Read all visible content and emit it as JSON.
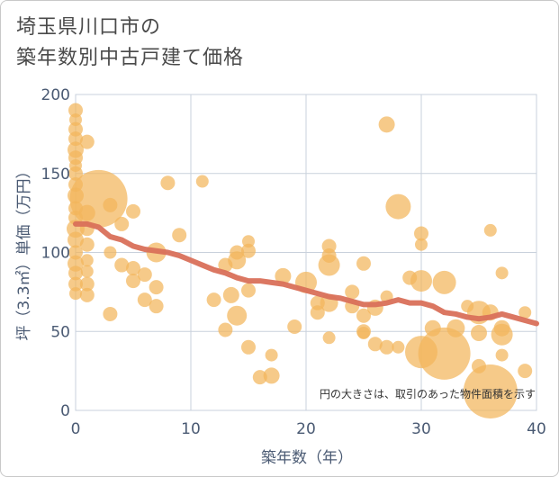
{
  "title": {
    "line1": "埼玉県川口市の",
    "line2": "築年数別中古戸建て価格"
  },
  "chart_data": {
    "type": "scatter",
    "title": "埼玉県川口市の築年数別中古戸建て価格",
    "xlabel": "築年数（年）",
    "ylabel": "坪（3.3㎡）単価（万円）",
    "xlim": [
      0,
      40
    ],
    "ylim": [
      0,
      200
    ],
    "x_ticks": [
      "0",
      "10",
      "20",
      "30",
      "40"
    ],
    "y_ticks": [
      "0",
      "50",
      "100",
      "150",
      "200"
    ],
    "grid": true,
    "note": "円の大きさは、取引のあった物件面積を示す",
    "colors": {
      "bubble": "#f2b55c",
      "trend": "#d9705a",
      "grid": "#c9d1dc"
    },
    "bubbles": [
      {
        "x": 0,
        "y": 190,
        "s": 8
      },
      {
        "x": 0,
        "y": 184,
        "s": 7
      },
      {
        "x": 0,
        "y": 178,
        "s": 8
      },
      {
        "x": 0,
        "y": 172,
        "s": 8
      },
      {
        "x": 0,
        "y": 165,
        "s": 9
      },
      {
        "x": 0,
        "y": 160,
        "s": 8
      },
      {
        "x": 0,
        "y": 155,
        "s": 7
      },
      {
        "x": 0,
        "y": 150,
        "s": 8
      },
      {
        "x": 0,
        "y": 143,
        "s": 8
      },
      {
        "x": 0,
        "y": 136,
        "s": 9
      },
      {
        "x": 0,
        "y": 128,
        "s": 8
      },
      {
        "x": 0,
        "y": 122,
        "s": 8
      },
      {
        "x": 0,
        "y": 115,
        "s": 10
      },
      {
        "x": 0,
        "y": 108,
        "s": 9
      },
      {
        "x": 0,
        "y": 100,
        "s": 8
      },
      {
        "x": 0,
        "y": 93,
        "s": 9
      },
      {
        "x": 0,
        "y": 87,
        "s": 8
      },
      {
        "x": 0,
        "y": 80,
        "s": 8
      },
      {
        "x": 0,
        "y": 74,
        "s": 7
      },
      {
        "x": 1,
        "y": 170,
        "s": 8
      },
      {
        "x": 1,
        "y": 125,
        "s": 9
      },
      {
        "x": 1,
        "y": 115,
        "s": 8
      },
      {
        "x": 1,
        "y": 105,
        "s": 8
      },
      {
        "x": 1,
        "y": 95,
        "s": 7
      },
      {
        "x": 1,
        "y": 88,
        "s": 7
      },
      {
        "x": 1,
        "y": 80,
        "s": 8
      },
      {
        "x": 1,
        "y": 73,
        "s": 8
      },
      {
        "x": 2,
        "y": 134,
        "s": 32
      },
      {
        "x": 3,
        "y": 130,
        "s": 8
      },
      {
        "x": 3,
        "y": 100,
        "s": 7
      },
      {
        "x": 3,
        "y": 61,
        "s": 8
      },
      {
        "x": 4,
        "y": 118,
        "s": 8
      },
      {
        "x": 4,
        "y": 92,
        "s": 8
      },
      {
        "x": 5,
        "y": 126,
        "s": 8
      },
      {
        "x": 5,
        "y": 90,
        "s": 8
      },
      {
        "x": 5,
        "y": 82,
        "s": 8
      },
      {
        "x": 6,
        "y": 86,
        "s": 8
      },
      {
        "x": 6,
        "y": 70,
        "s": 8
      },
      {
        "x": 7,
        "y": 100,
        "s": 11
      },
      {
        "x": 7,
        "y": 78,
        "s": 8
      },
      {
        "x": 7,
        "y": 66,
        "s": 8
      },
      {
        "x": 8,
        "y": 144,
        "s": 8
      },
      {
        "x": 9,
        "y": 111,
        "s": 8
      },
      {
        "x": 11,
        "y": 145,
        "s": 7
      },
      {
        "x": 12,
        "y": 70,
        "s": 8
      },
      {
        "x": 13,
        "y": 92,
        "s": 8
      },
      {
        "x": 13,
        "y": 51,
        "s": 8
      },
      {
        "x": 13.5,
        "y": 73,
        "s": 9
      },
      {
        "x": 14,
        "y": 100,
        "s": 8
      },
      {
        "x": 14,
        "y": 95,
        "s": 10
      },
      {
        "x": 14,
        "y": 60,
        "s": 11
      },
      {
        "x": 15,
        "y": 107,
        "s": 7
      },
      {
        "x": 15,
        "y": 101,
        "s": 8
      },
      {
        "x": 15,
        "y": 76,
        "s": 8
      },
      {
        "x": 15,
        "y": 40,
        "s": 8
      },
      {
        "x": 16,
        "y": 21,
        "s": 8
      },
      {
        "x": 17,
        "y": 35,
        "s": 7
      },
      {
        "x": 17,
        "y": 22,
        "s": 9
      },
      {
        "x": 18,
        "y": 85,
        "s": 9
      },
      {
        "x": 19,
        "y": 53,
        "s": 8
      },
      {
        "x": 20,
        "y": 81,
        "s": 12
      },
      {
        "x": 21,
        "y": 68,
        "s": 8
      },
      {
        "x": 21,
        "y": 62,
        "s": 8
      },
      {
        "x": 22,
        "y": 104,
        "s": 8
      },
      {
        "x": 22,
        "y": 98,
        "s": 8
      },
      {
        "x": 22,
        "y": 92,
        "s": 12
      },
      {
        "x": 22,
        "y": 68,
        "s": 10
      },
      {
        "x": 22,
        "y": 46,
        "s": 7
      },
      {
        "x": 24,
        "y": 75,
        "s": 8
      },
      {
        "x": 24,
        "y": 66,
        "s": 8
      },
      {
        "x": 25,
        "y": 93,
        "s": 8
      },
      {
        "x": 25,
        "y": 60,
        "s": 8
      },
      {
        "x": 25,
        "y": 50,
        "s": 8
      },
      {
        "x": 25,
        "y": 49,
        "s": 7
      },
      {
        "x": 26,
        "y": 65,
        "s": 9
      },
      {
        "x": 26,
        "y": 42,
        "s": 8
      },
      {
        "x": 27,
        "y": 181,
        "s": 9
      },
      {
        "x": 27,
        "y": 72,
        "s": 7
      },
      {
        "x": 27,
        "y": 40,
        "s": 8
      },
      {
        "x": 28,
        "y": 129,
        "s": 14
      },
      {
        "x": 28,
        "y": 40,
        "s": 7
      },
      {
        "x": 29,
        "y": 84,
        "s": 8
      },
      {
        "x": 30,
        "y": 112,
        "s": 8
      },
      {
        "x": 30,
        "y": 105,
        "s": 7
      },
      {
        "x": 30,
        "y": 82,
        "s": 12
      },
      {
        "x": 30,
        "y": 37,
        "s": 18
      },
      {
        "x": 31,
        "y": 52,
        "s": 9
      },
      {
        "x": 32,
        "y": 81,
        "s": 13
      },
      {
        "x": 32,
        "y": 36,
        "s": 29
      },
      {
        "x": 33,
        "y": 52,
        "s": 10
      },
      {
        "x": 34,
        "y": 66,
        "s": 7
      },
      {
        "x": 35,
        "y": 62,
        "s": 13
      },
      {
        "x": 35,
        "y": 49,
        "s": 9
      },
      {
        "x": 35,
        "y": 28,
        "s": 8
      },
      {
        "x": 36,
        "y": 114,
        "s": 7
      },
      {
        "x": 36,
        "y": 62,
        "s": 9
      },
      {
        "x": 36,
        "y": 12,
        "s": 30
      },
      {
        "x": 37,
        "y": 87,
        "s": 7
      },
      {
        "x": 37,
        "y": 52,
        "s": 9
      },
      {
        "x": 37,
        "y": 48,
        "s": 12
      },
      {
        "x": 37,
        "y": 35,
        "s": 7
      },
      {
        "x": 39,
        "y": 62,
        "s": 7
      },
      {
        "x": 39,
        "y": 25,
        "s": 8
      }
    ],
    "trend": {
      "x": [
        0,
        1,
        2,
        3,
        4,
        5,
        6,
        7,
        8,
        9,
        10,
        11,
        12,
        13,
        14,
        15,
        16,
        17,
        18,
        19,
        20,
        21,
        22,
        23,
        24,
        25,
        26,
        27,
        28,
        29,
        30,
        31,
        32,
        33,
        34,
        35,
        36,
        37,
        38,
        39,
        40
      ],
      "y": [
        118,
        118,
        116,
        110,
        108,
        104,
        102,
        101,
        100,
        98,
        95,
        92,
        89,
        87,
        84,
        82,
        82,
        81,
        80,
        78,
        76,
        74,
        72,
        71,
        69,
        67,
        67,
        68,
        70,
        68,
        68,
        66,
        62,
        61,
        59,
        58,
        59,
        61,
        59,
        57,
        55
      ]
    }
  }
}
